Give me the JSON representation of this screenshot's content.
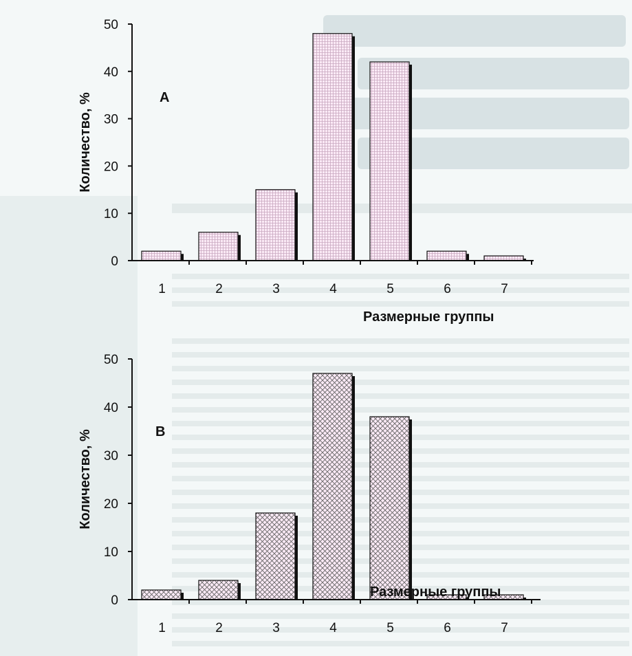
{
  "colors": {
    "page_background": "#f4f8f8",
    "bar_fill": "#fbeaf6",
    "bar_outline": "#111111",
    "bar_shadow": "#111111"
  },
  "chart_data": [
    {
      "type": "bar",
      "panel_label": "А",
      "categories": [
        "1",
        "2",
        "3",
        "4",
        "5",
        "6",
        "7"
      ],
      "values": [
        2,
        6,
        15,
        48,
        42,
        2,
        1
      ],
      "ylim": [
        0,
        50
      ],
      "yticks": [
        0,
        10,
        20,
        30,
        40,
        50
      ],
      "ylabel": "Количество, %",
      "xlabel": "Размерные группы",
      "pattern": "fine-grid",
      "grid": false,
      "legend": "none"
    },
    {
      "type": "bar",
      "panel_label": "В",
      "categories": [
        "1",
        "2",
        "3",
        "4",
        "5",
        "6",
        "7"
      ],
      "values": [
        2,
        4,
        18,
        47,
        38,
        1,
        1
      ],
      "ylim": [
        0,
        50
      ],
      "yticks": [
        0,
        10,
        20,
        30,
        40,
        50
      ],
      "ylabel": "Количество, %",
      "xlabel": "Размерные группы",
      "pattern": "crosshatch",
      "grid": false,
      "legend": "none"
    }
  ]
}
